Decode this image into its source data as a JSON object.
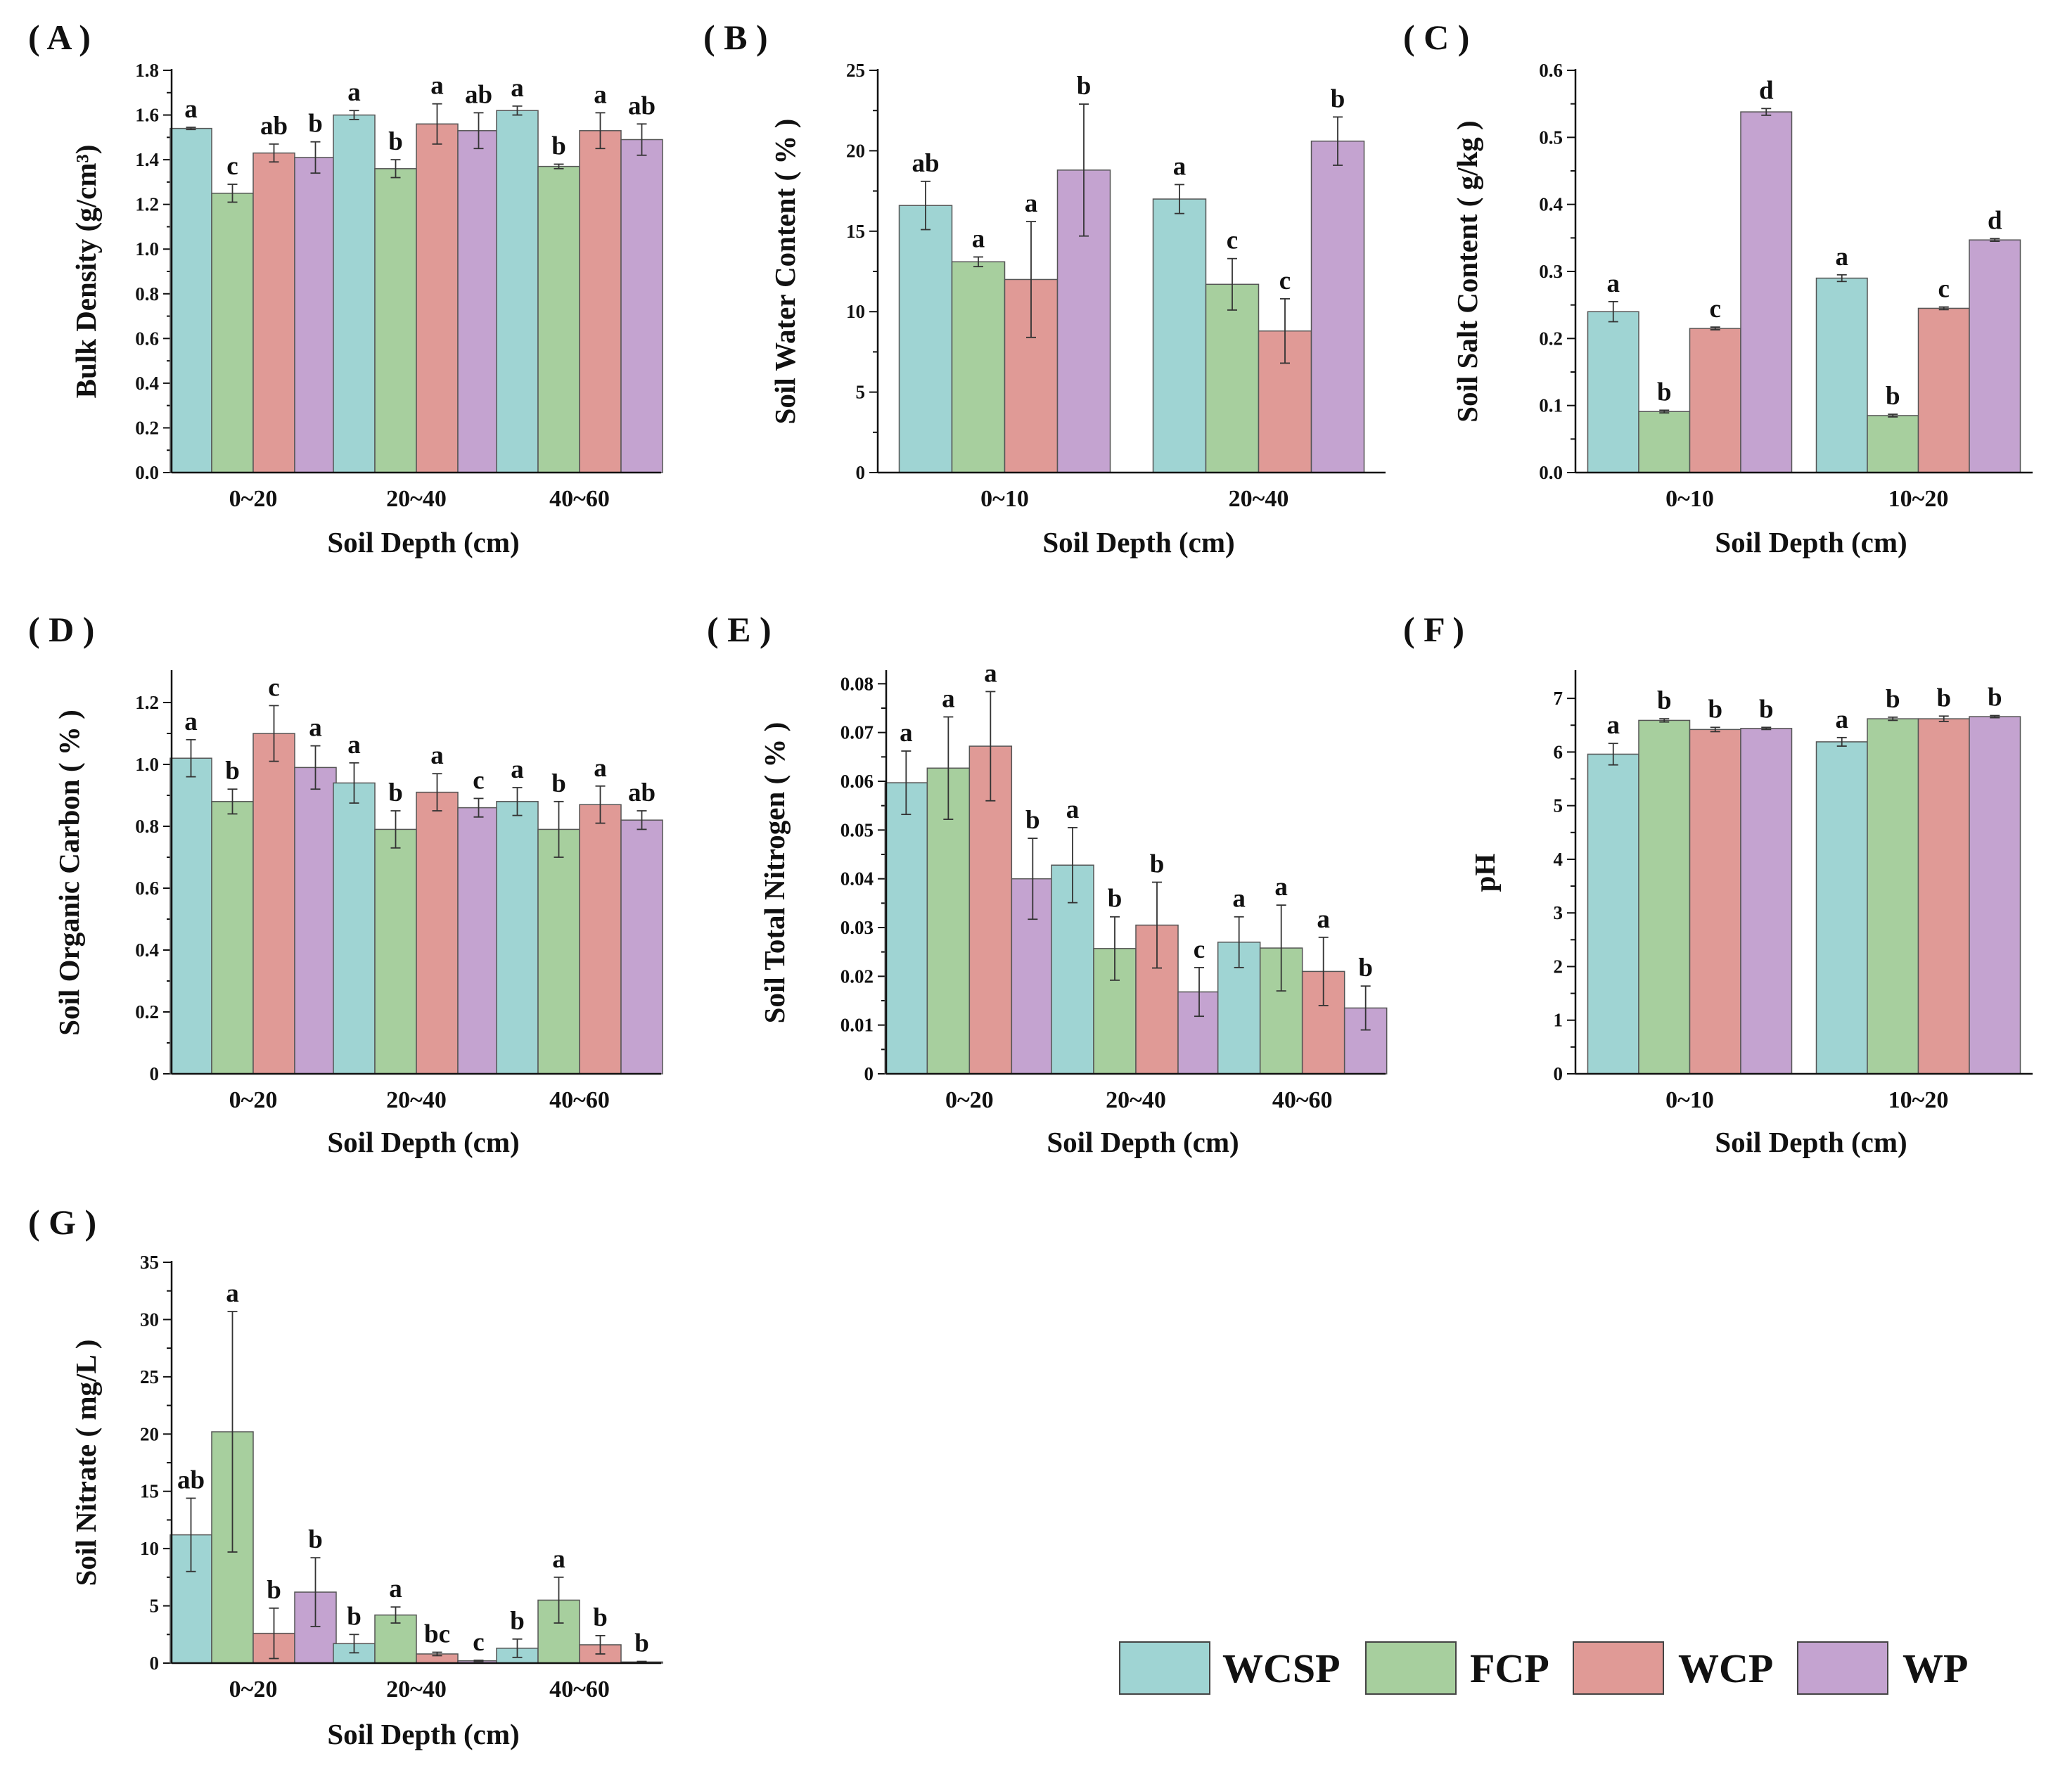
{
  "figure": {
    "series_names": [
      "WCSP",
      "FCP",
      "WCP",
      "WP"
    ],
    "colors": {
      "WCSP": "#9fd4d3",
      "FCP": "#a7cf9e",
      "WCP": "#e09a96",
      "WP": "#c4a3d0"
    }
  },
  "legend": {
    "items": [
      "WCSP",
      "FCP",
      "WCP",
      "WP"
    ]
  },
  "chart_data": [
    {
      "id": "A",
      "type": "bar",
      "panel_label": "( A )",
      "title": "",
      "xlabel": "Soil Depth (cm)",
      "ylabel": "Bulk Density (g/cm³)",
      "categories": [
        "0~20",
        "20~40",
        "40~60"
      ],
      "ylim": [
        0,
        1.8
      ],
      "yticks": [
        "0.0",
        "0.2",
        "0.4",
        "0.6",
        "0.8",
        "1.0",
        "1.2",
        "1.4",
        "1.6",
        "1.8"
      ],
      "series": [
        {
          "name": "WCSP",
          "values": [
            1.54,
            1.6,
            1.62
          ],
          "errors": [
            0.005,
            0.02,
            0.02
          ],
          "letters": [
            "a",
            "a",
            "a"
          ]
        },
        {
          "name": "FCP",
          "values": [
            1.25,
            1.36,
            1.37
          ],
          "errors": [
            0.04,
            0.04,
            0.01
          ],
          "letters": [
            "c",
            "b",
            "b"
          ]
        },
        {
          "name": "WCP",
          "values": [
            1.43,
            1.56,
            1.53
          ],
          "errors": [
            0.04,
            0.09,
            0.08
          ],
          "letters": [
            "ab",
            "a",
            "a"
          ]
        },
        {
          "name": "WP",
          "values": [
            1.41,
            1.53,
            1.49
          ],
          "errors": [
            0.07,
            0.08,
            0.07
          ],
          "letters": [
            "b",
            "ab",
            "ab"
          ]
        }
      ]
    },
    {
      "id": "B",
      "type": "bar",
      "panel_label": "( B )",
      "title": "",
      "xlabel": "Soil Depth (cm)",
      "ylabel": "Soil Water Content ( % )",
      "categories": [
        "0~10",
        "20~40"
      ],
      "ylim": [
        0,
        25
      ],
      "yticks": [
        "0",
        "5",
        "10",
        "15",
        "20",
        "25"
      ],
      "series": [
        {
          "name": "WCSP",
          "values": [
            16.6,
            17.0
          ],
          "errors": [
            1.5,
            0.9
          ],
          "letters": [
            "ab",
            "a"
          ]
        },
        {
          "name": "FCP",
          "values": [
            13.1,
            11.7
          ],
          "errors": [
            0.3,
            1.6
          ],
          "letters": [
            "a",
            "c"
          ]
        },
        {
          "name": "WCP",
          "values": [
            12.0,
            8.8
          ],
          "errors": [
            3.6,
            2.0
          ],
          "letters": [
            "a",
            "c"
          ]
        },
        {
          "name": "WP",
          "values": [
            18.8,
            20.6
          ],
          "errors": [
            4.1,
            1.5
          ],
          "letters": [
            "b",
            "b"
          ]
        }
      ]
    },
    {
      "id": "C",
      "type": "bar",
      "panel_label": "( C )",
      "title": "",
      "xlabel": "Soil Depth (cm)",
      "ylabel": "Soil Salt Content ( g/kg )",
      "categories": [
        "0~10",
        "10~20"
      ],
      "ylim": [
        0,
        0.6
      ],
      "yticks": [
        "0.0",
        "0.1",
        "0.2",
        "0.3",
        "0.4",
        "0.5",
        "0.6"
      ],
      "series": [
        {
          "name": "WCSP",
          "values": [
            0.24,
            0.29
          ],
          "errors": [
            0.015,
            0.005
          ],
          "letters": [
            "a",
            "a"
          ]
        },
        {
          "name": "FCP",
          "values": [
            0.091,
            0.085
          ],
          "errors": [
            0.002,
            0.002
          ],
          "letters": [
            "b",
            "b"
          ]
        },
        {
          "name": "WCP",
          "values": [
            0.215,
            0.245
          ],
          "errors": [
            0.002,
            0.002
          ],
          "letters": [
            "c",
            "c"
          ]
        },
        {
          "name": "WP",
          "values": [
            0.538,
            0.347
          ],
          "errors": [
            0.005,
            0.002
          ],
          "letters": [
            "d",
            "d"
          ]
        }
      ]
    },
    {
      "id": "D",
      "type": "bar",
      "panel_label": "( D )",
      "title": "",
      "xlabel": "Soil Depth (cm)",
      "ylabel": "Soil Organic Carbon ( % )",
      "categories": [
        "0~20",
        "20~40",
        "40~60"
      ],
      "ylim": [
        0,
        1.3
      ],
      "yticks": [
        "0",
        "0.2",
        "0.4",
        "0.6",
        "0.8",
        "1.0",
        "1.2"
      ],
      "series": [
        {
          "name": "WCSP",
          "values": [
            1.02,
            0.94,
            0.88
          ],
          "errors": [
            0.06,
            0.065,
            0.045
          ],
          "letters": [
            "a",
            "a",
            "a"
          ]
        },
        {
          "name": "FCP",
          "values": [
            0.88,
            0.79,
            0.79
          ],
          "errors": [
            0.04,
            0.06,
            0.09
          ],
          "letters": [
            "b",
            "b",
            "b"
          ]
        },
        {
          "name": "WCP",
          "values": [
            1.1,
            0.91,
            0.87
          ],
          "errors": [
            0.09,
            0.06,
            0.06
          ],
          "letters": [
            "c",
            "a",
            "a"
          ]
        },
        {
          "name": "WP",
          "values": [
            0.99,
            0.86,
            0.82
          ],
          "errors": [
            0.07,
            0.03,
            0.03
          ],
          "letters": [
            "a",
            "c",
            "ab"
          ]
        }
      ]
    },
    {
      "id": "E",
      "type": "bar",
      "panel_label": "( E )",
      "title": "",
      "xlabel": "Soil Depth (cm)",
      "ylabel": "Soil Total Nitrogen ( % )",
      "categories": [
        "0~20",
        "20~40",
        "40~60"
      ],
      "ylim": [
        0,
        0.0825
      ],
      "yticks": [
        "0",
        "0.01",
        "0.02",
        "0.03",
        "0.04",
        "0.05",
        "0.06",
        "0.07",
        "0.08"
      ],
      "series": [
        {
          "name": "WCSP",
          "values": [
            0.0597,
            0.0428,
            0.027
          ],
          "errors": [
            0.0065,
            0.0077,
            0.0052
          ],
          "letters": [
            "a",
            "a",
            "a"
          ]
        },
        {
          "name": "FCP",
          "values": [
            0.0627,
            0.0257,
            0.0258
          ],
          "errors": [
            0.0105,
            0.0065,
            0.0088
          ],
          "letters": [
            "a",
            "b",
            "a"
          ]
        },
        {
          "name": "WCP",
          "values": [
            0.0672,
            0.0305,
            0.021
          ],
          "errors": [
            0.0112,
            0.0088,
            0.007
          ],
          "letters": [
            "a",
            "b",
            "a"
          ]
        },
        {
          "name": "WP",
          "values": [
            0.04,
            0.0168,
            0.0135
          ],
          "errors": [
            0.0083,
            0.005,
            0.0045
          ],
          "letters": [
            "b",
            "c",
            "b"
          ]
        }
      ]
    },
    {
      "id": "F",
      "type": "bar",
      "panel_label": "( F )",
      "title": "",
      "xlabel": "Soil Depth (cm)",
      "ylabel": "pH",
      "categories": [
        "0~10",
        "10~20"
      ],
      "ylim": [
        0,
        7.5
      ],
      "yticks": [
        "0",
        "1",
        "2",
        "3",
        "4",
        "5",
        "6",
        "7"
      ],
      "series": [
        {
          "name": "WCSP",
          "values": [
            5.96,
            6.19
          ],
          "errors": [
            0.2,
            0.08
          ],
          "letters": [
            "a",
            "a"
          ]
        },
        {
          "name": "FCP",
          "values": [
            6.59,
            6.62
          ],
          "errors": [
            0.03,
            0.03
          ],
          "letters": [
            "b",
            "b"
          ]
        },
        {
          "name": "WCP",
          "values": [
            6.42,
            6.62
          ],
          "errors": [
            0.04,
            0.05
          ],
          "letters": [
            "b",
            "b"
          ]
        },
        {
          "name": "WP",
          "values": [
            6.44,
            6.66
          ],
          "errors": [
            0.02,
            0.02
          ],
          "letters": [
            "b",
            "b"
          ]
        }
      ]
    },
    {
      "id": "G",
      "type": "bar",
      "panel_label": "( G )",
      "title": "",
      "xlabel": "Soil Depth (cm)",
      "ylabel": "Soil Nitrate ( mg/L )",
      "categories": [
        "0~20",
        "20~40",
        "40~60"
      ],
      "ylim": [
        0,
        35
      ],
      "yticks": [
        "0",
        "5",
        "10",
        "15",
        "20",
        "25",
        "30",
        "35"
      ],
      "series": [
        {
          "name": "WCSP",
          "values": [
            11.2,
            1.7,
            1.3
          ],
          "errors": [
            3.2,
            0.8,
            0.8
          ],
          "letters": [
            "ab",
            "b",
            "b"
          ]
        },
        {
          "name": "FCP",
          "values": [
            20.2,
            4.2,
            5.5
          ],
          "errors": [
            10.5,
            0.7,
            2.0
          ],
          "letters": [
            "a",
            "a",
            "a"
          ]
        },
        {
          "name": "WCP",
          "values": [
            2.6,
            0.8,
            1.6
          ],
          "errors": [
            2.2,
            0.15,
            0.8
          ],
          "letters": [
            "b",
            "bc",
            "b"
          ]
        },
        {
          "name": "WP",
          "values": [
            6.2,
            0.2,
            0.1
          ],
          "errors": [
            3.0,
            0.05,
            0.05
          ],
          "letters": [
            "b",
            "c",
            "b"
          ]
        }
      ]
    }
  ]
}
